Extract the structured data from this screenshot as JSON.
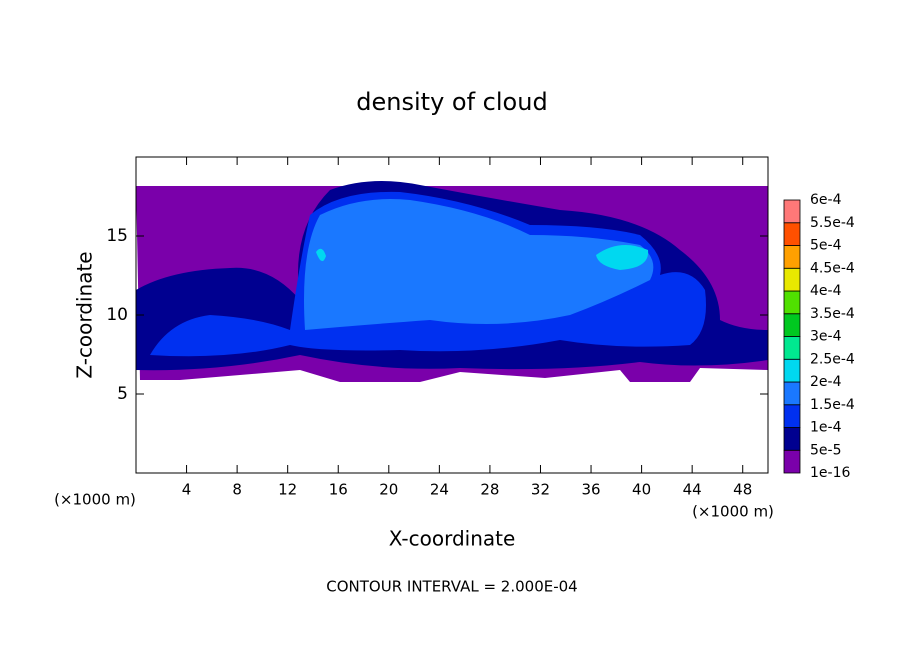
{
  "chart_data": {
    "type": "contour",
    "title": "density of cloud",
    "x_label": "X-coordinate",
    "y_label": "Z-coordinate",
    "x_unit": "(×1000 m)",
    "y_unit": "(×1000 m)",
    "footer": "CONTOUR INTERVAL = 2.000E-04",
    "xlim": [
      0,
      50
    ],
    "ylim": [
      0,
      20
    ],
    "xticks": [
      4,
      8,
      12,
      16,
      20,
      24,
      28,
      32,
      36,
      40,
      44,
      48
    ],
    "yticks": [
      5,
      10,
      15
    ],
    "colorbar_ticks": [
      {
        "value": 1e-16,
        "label": "1e-16"
      },
      {
        "value": 5e-05,
        "label": "5e-5"
      },
      {
        "value": 0.0001,
        "label": "1e-4"
      },
      {
        "value": 0.00015,
        "label": "1.5e-4"
      },
      {
        "value": 0.0002,
        "label": "2e-4"
      },
      {
        "value": 0.00025,
        "label": "2.5e-4"
      },
      {
        "value": 0.0003,
        "label": "3e-4"
      },
      {
        "value": 0.00035,
        "label": "3.5e-4"
      },
      {
        "value": 0.0004,
        "label": "4e-4"
      },
      {
        "value": 0.00045,
        "label": "4.5e-4"
      },
      {
        "value": 0.0005,
        "label": "5e-4"
      },
      {
        "value": 0.00055,
        "label": "5.5e-4"
      },
      {
        "value": 0.0006,
        "label": "6e-4"
      }
    ],
    "colorbar_colors": [
      "#7a00aa",
      "#000090",
      "#0030f0",
      "#1a78ff",
      "#00d8f0",
      "#00e890",
      "#00c820",
      "#50e000",
      "#e8e800",
      "#ffa000",
      "#ff5000",
      "#ff7878"
    ]
  }
}
